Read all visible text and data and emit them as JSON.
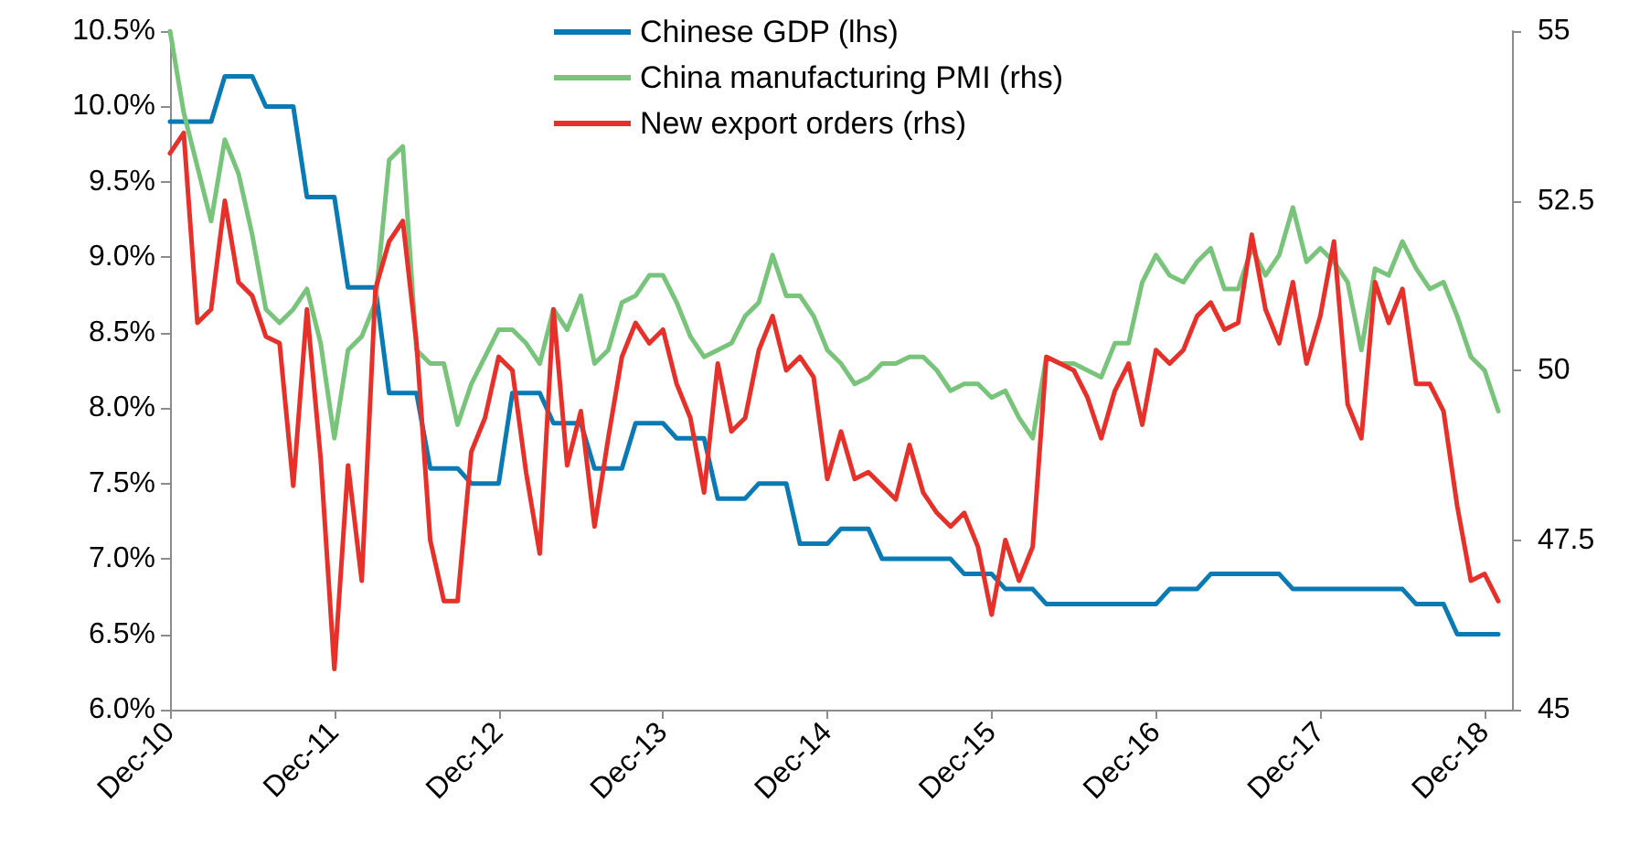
{
  "chart_data": {
    "type": "line",
    "marker": "none",
    "line_style": "solid",
    "grid": false,
    "legend": "top",
    "x": [
      "2010-12",
      "2011-01",
      "2011-02",
      "2011-03",
      "2011-04",
      "2011-05",
      "2011-06",
      "2011-07",
      "2011-08",
      "2011-09",
      "2011-10",
      "2011-11",
      "2011-12",
      "2012-01",
      "2012-02",
      "2012-03",
      "2012-04",
      "2012-05",
      "2012-06",
      "2012-07",
      "2012-08",
      "2012-09",
      "2012-10",
      "2012-11",
      "2012-12",
      "2013-01",
      "2013-02",
      "2013-03",
      "2013-04",
      "2013-05",
      "2013-06",
      "2013-07",
      "2013-08",
      "2013-09",
      "2013-10",
      "2013-11",
      "2013-12",
      "2014-01",
      "2014-02",
      "2014-03",
      "2014-04",
      "2014-05",
      "2014-06",
      "2014-07",
      "2014-08",
      "2014-09",
      "2014-10",
      "2014-11",
      "2014-12",
      "2015-01",
      "2015-02",
      "2015-03",
      "2015-04",
      "2015-05",
      "2015-06",
      "2015-07",
      "2015-08",
      "2015-09",
      "2015-10",
      "2015-11",
      "2015-12",
      "2016-01",
      "2016-02",
      "2016-03",
      "2016-04",
      "2016-05",
      "2016-06",
      "2016-07",
      "2016-08",
      "2016-09",
      "2016-10",
      "2016-11",
      "2016-12",
      "2017-01",
      "2017-02",
      "2017-03",
      "2017-04",
      "2017-05",
      "2017-06",
      "2017-07",
      "2017-08",
      "2017-09",
      "2017-10",
      "2017-11",
      "2017-12",
      "2018-01",
      "2018-02",
      "2018-03",
      "2018-04",
      "2018-05",
      "2018-06",
      "2018-07",
      "2018-08",
      "2018-09",
      "2018-10",
      "2018-11",
      "2018-12",
      "2019-01"
    ],
    "xlim": [
      "2010-12",
      "2019-02"
    ],
    "xticks": [
      {
        "value": "2010-12",
        "label": "Dec-10"
      },
      {
        "value": "2011-12",
        "label": "Dec-11"
      },
      {
        "value": "2012-12",
        "label": "Dec-12"
      },
      {
        "value": "2013-12",
        "label": "Dec-13"
      },
      {
        "value": "2014-12",
        "label": "Dec-14"
      },
      {
        "value": "2015-12",
        "label": "Dec-15"
      },
      {
        "value": "2016-12",
        "label": "Dec-16"
      },
      {
        "value": "2017-12",
        "label": "Dec-17"
      },
      {
        "value": "2018-12",
        "label": "Dec-18"
      }
    ],
    "ylim": [
      6,
      10.5
    ],
    "yticks": [
      {
        "value": 6,
        "label": "6.0%"
      },
      {
        "value": 6.5,
        "label": "6.5%"
      },
      {
        "value": 7,
        "label": "7.0%"
      },
      {
        "value": 7.5,
        "label": "7.5%"
      },
      {
        "value": 8,
        "label": "8.0%"
      },
      {
        "value": 8.5,
        "label": "8.5%"
      },
      {
        "value": 9,
        "label": "9.0%"
      },
      {
        "value": 9.5,
        "label": "9.5%"
      },
      {
        "value": 10,
        "label": "10.0%"
      },
      {
        "value": 10.5,
        "label": "10.5%"
      }
    ],
    "y2lim": [
      45,
      55
    ],
    "y2ticks": [
      45,
      47.5,
      50,
      52.5,
      55
    ],
    "series": [
      {
        "name": "Chinese GDP (lhs)",
        "color": "#0a7ab5",
        "values": [
          9.9,
          9.9,
          9.9,
          9.9,
          10.2,
          10.2,
          10.2,
          10.0,
          10.0,
          10.0,
          9.4,
          9.4,
          9.4,
          8.8,
          8.8,
          8.8,
          8.1,
          8.1,
          8.1,
          7.6,
          7.6,
          7.6,
          7.5,
          7.5,
          7.5,
          8.1,
          8.1,
          8.1,
          7.9,
          7.9,
          7.9,
          7.6,
          7.6,
          7.6,
          7.9,
          7.9,
          7.9,
          7.8,
          7.8,
          7.8,
          7.4,
          7.4,
          7.4,
          7.5,
          7.5,
          7.5,
          7.1,
          7.1,
          7.1,
          7.2,
          7.2,
          7.2,
          7.0,
          7.0,
          7.0,
          7.0,
          7.0,
          7.0,
          6.9,
          6.9,
          6.9,
          6.8,
          6.8,
          6.8,
          6.7,
          6.7,
          6.7,
          6.7,
          6.7,
          6.7,
          6.7,
          6.7,
          6.7,
          6.8,
          6.8,
          6.8,
          6.9,
          6.9,
          6.9,
          6.9,
          6.9,
          6.9,
          6.8,
          6.8,
          6.8,
          6.8,
          6.8,
          6.8,
          6.8,
          6.8,
          6.8,
          6.7,
          6.7,
          6.7,
          6.5,
          6.5,
          6.5,
          6.5
        ]
      },
      {
        "name": "China manufacturing PMI (rhs)",
        "color": "#78c47b",
        "axis": "y2",
        "values": [
          55.0,
          53.8,
          53.0,
          52.2,
          53.4,
          52.9,
          52.0,
          50.9,
          50.7,
          50.9,
          51.2,
          50.4,
          49.0,
          50.3,
          50.5,
          51.0,
          53.1,
          53.3,
          50.3,
          50.1,
          50.1,
          49.2,
          49.8,
          50.2,
          50.6,
          50.6,
          50.4,
          50.1,
          50.9,
          50.6,
          51.1,
          50.1,
          50.3,
          51.0,
          51.1,
          51.4,
          51.4,
          51.0,
          50.5,
          50.2,
          50.3,
          50.4,
          50.8,
          51.0,
          51.7,
          51.1,
          51.1,
          50.8,
          50.3,
          50.1,
          49.8,
          49.9,
          50.1,
          50.1,
          50.2,
          50.2,
          50.0,
          49.7,
          49.8,
          49.8,
          49.6,
          49.7,
          49.3,
          49.0,
          50.2,
          50.1,
          50.1,
          50.0,
          49.9,
          50.4,
          50.4,
          51.3,
          51.7,
          51.4,
          51.3,
          51.6,
          51.8,
          51.2,
          51.2,
          51.8,
          51.4,
          51.7,
          52.4,
          51.6,
          51.8,
          51.6,
          51.3,
          50.3,
          51.5,
          51.4,
          51.9,
          51.5,
          51.2,
          51.3,
          50.8,
          50.2,
          50.0,
          49.4
        ]
      },
      {
        "name": "New export orders (rhs)",
        "color": "#e8302a",
        "axis": "y2",
        "values": [
          53.2,
          53.5,
          50.7,
          50.9,
          52.5,
          51.3,
          51.1,
          50.5,
          50.4,
          48.3,
          50.9,
          48.7,
          45.6,
          48.6,
          46.9,
          51.2,
          51.9,
          52.2,
          50.4,
          47.5,
          46.6,
          46.6,
          48.8,
          49.3,
          50.2,
          50.0,
          48.5,
          47.3,
          50.9,
          48.6,
          49.4,
          47.7,
          49.0,
          50.2,
          50.7,
          50.4,
          50.6,
          49.8,
          49.3,
          48.2,
          50.1,
          49.1,
          49.3,
          50.3,
          50.8,
          50.0,
          50.2,
          49.9,
          48.4,
          49.1,
          48.4,
          48.5,
          48.3,
          48.1,
          48.9,
          48.2,
          47.9,
          47.7,
          47.9,
          47.4,
          46.4,
          47.5,
          46.9,
          47.4,
          50.2,
          50.1,
          50.0,
          49.6,
          49.0,
          49.7,
          50.1,
          49.2,
          50.3,
          50.1,
          50.3,
          50.8,
          51.0,
          50.6,
          50.7,
          52.0,
          50.9,
          50.4,
          51.3,
          50.1,
          50.8,
          51.9,
          49.5,
          49.0,
          51.3,
          50.7,
          51.2,
          49.8,
          49.8,
          49.4,
          48.0,
          46.9,
          47.0,
          46.6
        ]
      }
    ]
  }
}
